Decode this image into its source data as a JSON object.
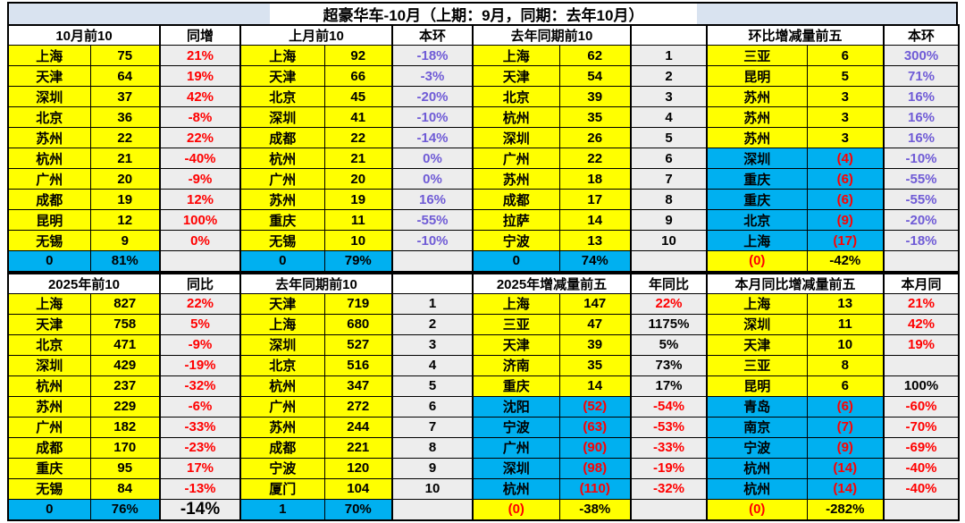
{
  "title": "超豪华车-10月（上期：9月，同期：去年10月）",
  "colors": {
    "row_positive_bg": "#ffff00",
    "row_negative_bg": "#00b0f0",
    "total_row_bg": "#00b0f0",
    "pct_col_bg": "#ededed",
    "band_bg": "#d9e3f0",
    "negative_text": "#ff0000",
    "ring_pct_text": "#6f5bd6"
  },
  "halves": [
    {
      "sections": [
        {
          "header": "10月前10",
          "sub": "同增",
          "rows": [
            {
              "city": "上海",
              "val": "75",
              "pct": "21%",
              "pctColor": "red"
            },
            {
              "city": "天津",
              "val": "64",
              "pct": "19%",
              "pctColor": "red"
            },
            {
              "city": "深圳",
              "val": "37",
              "pct": "42%",
              "pctColor": "red"
            },
            {
              "city": "北京",
              "val": "36",
              "pct": "-8%",
              "pctColor": "red"
            },
            {
              "city": "苏州",
              "val": "22",
              "pct": "22%",
              "pctColor": "red"
            },
            {
              "city": "杭州",
              "val": "21",
              "pct": "-40%",
              "pctColor": "red"
            },
            {
              "city": "广州",
              "val": "20",
              "pct": "-9%",
              "pctColor": "red"
            },
            {
              "city": "成都",
              "val": "19",
              "pct": "12%",
              "pctColor": "red"
            },
            {
              "city": "昆明",
              "val": "12",
              "pct": "100%",
              "pctColor": "red"
            },
            {
              "city": "无锡",
              "val": "9",
              "pct": "0%",
              "pctColor": "red"
            }
          ],
          "total": {
            "a": "0",
            "b": "81%",
            "c": "",
            "variant": "cyan"
          }
        },
        {
          "header": "上月前10",
          "sub": "本环",
          "rows": [
            {
              "city": "上海",
              "val": "92",
              "pct": "-18%",
              "pctColor": "purple"
            },
            {
              "city": "天津",
              "val": "66",
              "pct": "-3%",
              "pctColor": "purple"
            },
            {
              "city": "北京",
              "val": "45",
              "pct": "-20%",
              "pctColor": "purple"
            },
            {
              "city": "深圳",
              "val": "41",
              "pct": "-10%",
              "pctColor": "purple"
            },
            {
              "city": "成都",
              "val": "22",
              "pct": "-14%",
              "pctColor": "purple"
            },
            {
              "city": "杭州",
              "val": "21",
              "pct": "0%",
              "pctColor": "purple"
            },
            {
              "city": "广州",
              "val": "20",
              "pct": "0%",
              "pctColor": "purple"
            },
            {
              "city": "苏州",
              "val": "19",
              "pct": "16%",
              "pctColor": "purple"
            },
            {
              "city": "重庆",
              "val": "11",
              "pct": "-55%",
              "pctColor": "purple"
            },
            {
              "city": "无锡",
              "val": "10",
              "pct": "-10%",
              "pctColor": "purple"
            }
          ],
          "total": {
            "a": "0",
            "b": "79%",
            "c": "",
            "variant": "cyan"
          }
        },
        {
          "header": "去年同期前10",
          "sub": "",
          "rows": [
            {
              "city": "上海",
              "val": "62",
              "pct": "1",
              "pctColor": "black"
            },
            {
              "city": "天津",
              "val": "54",
              "pct": "2",
              "pctColor": "black"
            },
            {
              "city": "北京",
              "val": "39",
              "pct": "3",
              "pctColor": "black"
            },
            {
              "city": "杭州",
              "val": "35",
              "pct": "4",
              "pctColor": "black"
            },
            {
              "city": "深圳",
              "val": "26",
              "pct": "5",
              "pctColor": "black"
            },
            {
              "city": "广州",
              "val": "22",
              "pct": "6",
              "pctColor": "black"
            },
            {
              "city": "苏州",
              "val": "18",
              "pct": "7",
              "pctColor": "black"
            },
            {
              "city": "成都",
              "val": "17",
              "pct": "8",
              "pctColor": "black"
            },
            {
              "city": "拉萨",
              "val": "14",
              "pct": "9",
              "pctColor": "black"
            },
            {
              "city": "宁波",
              "val": "13",
              "pct": "10",
              "pctColor": "black"
            }
          ],
          "total": {
            "a": "0",
            "b": "74%",
            "c": "",
            "variant": "cyan"
          }
        },
        {
          "header": "环比增减量前五",
          "sub": "本环",
          "rows": [
            {
              "city": "三亚",
              "val": "6",
              "pct": "300%",
              "pctColor": "purple"
            },
            {
              "city": "昆明",
              "val": "5",
              "pct": "71%",
              "pctColor": "purple"
            },
            {
              "city": "苏州",
              "val": "3",
              "pct": "16%",
              "pctColor": "purple"
            },
            {
              "city": "苏州",
              "val": "3",
              "pct": "16%",
              "pctColor": "purple"
            },
            {
              "city": "苏州",
              "val": "3",
              "pct": "16%",
              "pctColor": "purple"
            },
            {
              "city": "深圳",
              "val": "(4)",
              "pct": "-10%",
              "pctColor": "purple"
            },
            {
              "city": "重庆",
              "val": "(6)",
              "pct": "-55%",
              "pctColor": "purple"
            },
            {
              "city": "重庆",
              "val": "(6)",
              "pct": "-55%",
              "pctColor": "purple"
            },
            {
              "city": "北京",
              "val": "(9)",
              "pct": "-20%",
              "pctColor": "purple"
            },
            {
              "city": "上海",
              "val": "(17)",
              "pct": "-18%",
              "pctColor": "purple"
            }
          ],
          "total": {
            "a": "(0)",
            "b": "-42%",
            "c": "",
            "variant": "yellow"
          }
        }
      ]
    },
    {
      "sections": [
        {
          "header": "2025年前10",
          "sub": "同比",
          "rows": [
            {
              "city": "上海",
              "val": "827",
              "pct": "22%",
              "pctColor": "red"
            },
            {
              "city": "天津",
              "val": "758",
              "pct": "5%",
              "pctColor": "red"
            },
            {
              "city": "北京",
              "val": "471",
              "pct": "-9%",
              "pctColor": "red"
            },
            {
              "city": "深圳",
              "val": "429",
              "pct": "-19%",
              "pctColor": "red"
            },
            {
              "city": "杭州",
              "val": "237",
              "pct": "-32%",
              "pctColor": "red"
            },
            {
              "city": "苏州",
              "val": "229",
              "pct": "-6%",
              "pctColor": "red"
            },
            {
              "city": "广州",
              "val": "182",
              "pct": "-33%",
              "pctColor": "red"
            },
            {
              "city": "成都",
              "val": "170",
              "pct": "-23%",
              "pctColor": "red"
            },
            {
              "city": "重庆",
              "val": "95",
              "pct": "17%",
              "pctColor": "red"
            },
            {
              "city": "无锡",
              "val": "84",
              "pct": "-13%",
              "pctColor": "red"
            }
          ],
          "total": {
            "a": "0",
            "b": "76%",
            "c": "-14%",
            "variant": "cyan",
            "cBig": true
          }
        },
        {
          "header": "去年同期前10",
          "sub": "",
          "rows": [
            {
              "city": "天津",
              "val": "719",
              "pct": "1",
              "pctColor": "black"
            },
            {
              "city": "上海",
              "val": "680",
              "pct": "2",
              "pctColor": "black"
            },
            {
              "city": "深圳",
              "val": "527",
              "pct": "3",
              "pctColor": "black"
            },
            {
              "city": "北京",
              "val": "516",
              "pct": "4",
              "pctColor": "black"
            },
            {
              "city": "杭州",
              "val": "347",
              "pct": "5",
              "pctColor": "black"
            },
            {
              "city": "广州",
              "val": "272",
              "pct": "6",
              "pctColor": "black"
            },
            {
              "city": "苏州",
              "val": "244",
              "pct": "7",
              "pctColor": "black"
            },
            {
              "city": "成都",
              "val": "221",
              "pct": "8",
              "pctColor": "black"
            },
            {
              "city": "宁波",
              "val": "120",
              "pct": "9",
              "pctColor": "black"
            },
            {
              "city": "厦门",
              "val": "104",
              "pct": "10",
              "pctColor": "black"
            }
          ],
          "total": {
            "a": "1",
            "b": "70%",
            "c": "",
            "variant": "cyan"
          }
        },
        {
          "header": "2025年增减量前五",
          "sub": "年同比",
          "rows": [
            {
              "city": "上海",
              "val": "147",
              "pct": "22%",
              "pctColor": "red"
            },
            {
              "city": "三亚",
              "val": "47",
              "pct": "1175%",
              "pctColor": "black"
            },
            {
              "city": "天津",
              "val": "39",
              "pct": "5%",
              "pctColor": "black"
            },
            {
              "city": "济南",
              "val": "35",
              "pct": "73%",
              "pctColor": "black"
            },
            {
              "city": "重庆",
              "val": "14",
              "pct": "17%",
              "pctColor": "black"
            },
            {
              "city": "沈阳",
              "val": "(52)",
              "pct": "-54%",
              "pctColor": "red"
            },
            {
              "city": "宁波",
              "val": "(63)",
              "pct": "-53%",
              "pctColor": "red"
            },
            {
              "city": "广州",
              "val": "(90)",
              "pct": "-33%",
              "pctColor": "red"
            },
            {
              "city": "深圳",
              "val": "(98)",
              "pct": "-19%",
              "pctColor": "red"
            },
            {
              "city": "杭州",
              "val": "(110)",
              "pct": "-32%",
              "pctColor": "red"
            }
          ],
          "total": {
            "a": "(0)",
            "b": "-38%",
            "c": "",
            "variant": "yellow"
          }
        },
        {
          "header": "本月同比增减量前五",
          "sub": "本月同",
          "rows": [
            {
              "city": "上海",
              "val": "13",
              "pct": "21%",
              "pctColor": "red"
            },
            {
              "city": "深圳",
              "val": "11",
              "pct": "42%",
              "pctColor": "red"
            },
            {
              "city": "天津",
              "val": "10",
              "pct": "19%",
              "pctColor": "red"
            },
            {
              "city": "三亚",
              "val": "8",
              "pct": "",
              "pctColor": "black"
            },
            {
              "city": "昆明",
              "val": "6",
              "pct": "100%",
              "pctColor": "black"
            },
            {
              "city": "青岛",
              "val": "(6)",
              "pct": "-60%",
              "pctColor": "red"
            },
            {
              "city": "南京",
              "val": "(7)",
              "pct": "-70%",
              "pctColor": "red"
            },
            {
              "city": "宁波",
              "val": "(9)",
              "pct": "-69%",
              "pctColor": "red"
            },
            {
              "city": "杭州",
              "val": "(14)",
              "pct": "-40%",
              "pctColor": "red"
            },
            {
              "city": "杭州",
              "val": "(14)",
              "pct": "-40%",
              "pctColor": "red"
            }
          ],
          "total": {
            "a": "(0)",
            "b": "-282%",
            "c": "",
            "variant": "yellow"
          }
        }
      ]
    }
  ]
}
